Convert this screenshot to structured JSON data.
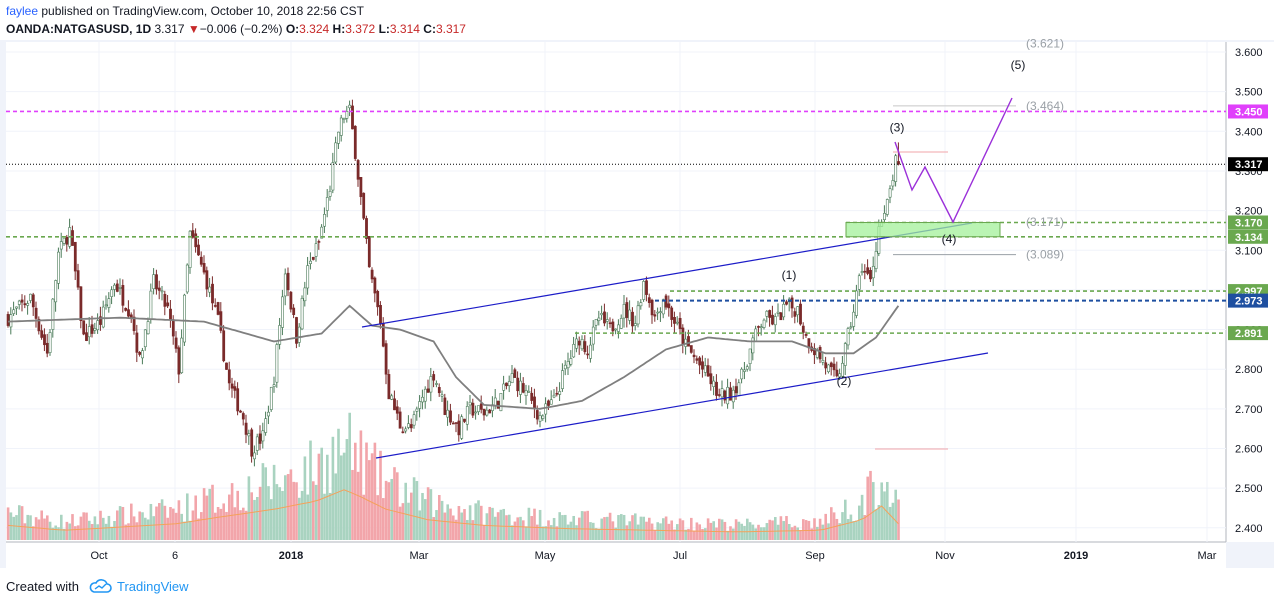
{
  "header": {
    "author": "faylee",
    "published": " published on TradingView.com, October 10, 2018 22:56 CST",
    "symbol": "OANDA:NATGASUSD, 1D",
    "last": "3.317",
    "change": "−0.006 (−0.2%)",
    "o_label": "O:",
    "o_value": "3.324",
    "h_label": "H:",
    "h_value": "3.372",
    "l_label": "L:",
    "l_value": "3.314",
    "c_label": "C:",
    "c_value": "3.317"
  },
  "footer": {
    "created": "Created with",
    "brand": "TradingView"
  },
  "colors": {
    "up": "#4a7a58",
    "down": "#7a2a2a",
    "vol_up": "#a9d3c0",
    "vol_down": "#f2a5aa",
    "ma": "#7f7f7f",
    "channel": "#1c1cc8",
    "wave": "#9b30d9",
    "magenta": "#e040fb",
    "green_dash": "#6aa84f",
    "blue_dash": "#1e4fa0"
  },
  "chart_data": {
    "type": "candlestick",
    "instrument": "OANDA:NATGASUSD, 1D",
    "x_ticks": [
      "Oct",
      "6",
      "2018",
      "Mar",
      "May",
      "Jul",
      "Sep",
      "Nov",
      "2019",
      "Mar"
    ],
    "y_ticks": [
      "3.600",
      "3.500",
      "3.400",
      "3.300",
      "3.200",
      "3.100",
      "3.000",
      "2.900",
      "2.800",
      "2.700",
      "2.600",
      "2.500",
      "2.400"
    ],
    "ylim": [
      2.375,
      3.615
    ],
    "anchors": [
      [
        0,
        2.93
      ],
      [
        8,
        2.98
      ],
      [
        14,
        2.84
      ],
      [
        18,
        3.09
      ],
      [
        22,
        3.15
      ],
      [
        27,
        2.88
      ],
      [
        33,
        2.92
      ],
      [
        38,
        3.02
      ],
      [
        44,
        2.94
      ],
      [
        47,
        2.82
      ],
      [
        52,
        3.02
      ],
      [
        57,
        2.95
      ],
      [
        61,
        2.8
      ],
      [
        65,
        3.14
      ],
      [
        71,
        3.02
      ],
      [
        75,
        2.92
      ],
      [
        79,
        2.76
      ],
      [
        84,
        2.68
      ],
      [
        87,
        2.6
      ],
      [
        91,
        2.63
      ],
      [
        95,
        2.78
      ],
      [
        99,
        3.05
      ],
      [
        103,
        2.88
      ],
      [
        107,
        3.05
      ],
      [
        111,
        3.12
      ],
      [
        115,
        3.26
      ],
      [
        118,
        3.4
      ],
      [
        120,
        3.44
      ],
      [
        122,
        3.45
      ],
      [
        124,
        3.35
      ],
      [
        126,
        3.23
      ],
      [
        129,
        3.05
      ],
      [
        133,
        2.92
      ],
      [
        136,
        2.74
      ],
      [
        140,
        2.66
      ],
      [
        144,
        2.65
      ],
      [
        148,
        2.73
      ],
      [
        152,
        2.79
      ],
      [
        156,
        2.7
      ],
      [
        161,
        2.65
      ],
      [
        165,
        2.7
      ],
      [
        170,
        2.69
      ],
      [
        175,
        2.72
      ],
      [
        180,
        2.78
      ],
      [
        185,
        2.74
      ],
      [
        190,
        2.68
      ],
      [
        195,
        2.72
      ],
      [
        199,
        2.8
      ],
      [
        204,
        2.88
      ],
      [
        207,
        2.85
      ],
      [
        211,
        2.93
      ],
      [
        215,
        2.9
      ],
      [
        220,
        2.95
      ],
      [
        224,
        2.92
      ],
      [
        227,
        3.02
      ],
      [
        231,
        2.93
      ],
      [
        234,
        2.98
      ],
      [
        238,
        2.92
      ],
      [
        242,
        2.86
      ],
      [
        246,
        2.82
      ],
      [
        250,
        2.78
      ],
      [
        254,
        2.73
      ],
      [
        258,
        2.74
      ],
      [
        262,
        2.78
      ],
      [
        266,
        2.87
      ],
      [
        270,
        2.93
      ],
      [
        274,
        2.92
      ],
      [
        278,
        2.96
      ],
      [
        282,
        2.95
      ],
      [
        285,
        2.88
      ],
      [
        289,
        2.84
      ],
      [
        293,
        2.8
      ],
      [
        296,
        2.77
      ],
      [
        299,
        2.85
      ],
      [
        302,
        2.95
      ],
      [
        305,
        3.06
      ],
      [
        308,
        3.02
      ],
      [
        311,
        3.16
      ],
      [
        313,
        3.18
      ],
      [
        315,
        3.25
      ],
      [
        317,
        3.32
      ],
      [
        318,
        3.317
      ]
    ],
    "volume_anchors": [
      [
        0,
        0.18
      ],
      [
        20,
        0.12
      ],
      [
        40,
        0.16
      ],
      [
        60,
        0.2
      ],
      [
        75,
        0.28
      ],
      [
        95,
        0.38
      ],
      [
        110,
        0.48
      ],
      [
        120,
        0.62
      ],
      [
        125,
        0.55
      ],
      [
        135,
        0.38
      ],
      [
        150,
        0.25
      ],
      [
        170,
        0.18
      ],
      [
        200,
        0.14
      ],
      [
        230,
        0.12
      ],
      [
        260,
        0.1
      ],
      [
        290,
        0.12
      ],
      [
        305,
        0.25
      ],
      [
        312,
        0.42
      ],
      [
        318,
        0.2
      ]
    ],
    "moving_average": [
      [
        0,
        2.92
      ],
      [
        40,
        2.93
      ],
      [
        70,
        2.92
      ],
      [
        95,
        2.87
      ],
      [
        112,
        2.89
      ],
      [
        122,
        2.96
      ],
      [
        130,
        2.91
      ],
      [
        140,
        2.9
      ],
      [
        152,
        2.87
      ],
      [
        160,
        2.78
      ],
      [
        170,
        2.71
      ],
      [
        190,
        2.7
      ],
      [
        205,
        2.72
      ],
      [
        220,
        2.78
      ],
      [
        235,
        2.85
      ],
      [
        250,
        2.88
      ],
      [
        265,
        2.87
      ],
      [
        280,
        2.87
      ],
      [
        292,
        2.84
      ],
      [
        302,
        2.84
      ],
      [
        310,
        2.88
      ],
      [
        318,
        2.96
      ]
    ],
    "horizontal_levels": [
      {
        "price": 3.45,
        "label": "3.450",
        "style": "magenta-dash"
      },
      {
        "price": 3.317,
        "label": "3.317",
        "style": "black-dot"
      },
      {
        "price": 3.17,
        "label": "3.170",
        "style": "green-dash"
      },
      {
        "price": 3.134,
        "label": "3.134",
        "style": "green-dash"
      },
      {
        "price": 2.997,
        "label": "2.997",
        "style": "green-dash"
      },
      {
        "price": 2.973,
        "label": "2.973",
        "style": "blue-dash"
      },
      {
        "price": 2.891,
        "label": "2.891",
        "style": "green-dash"
      }
    ],
    "channel_upper": [
      [
        362,
        327
      ],
      [
        972,
        223
      ]
    ],
    "channel_lower": [
      [
        376,
        458
      ],
      [
        988,
        353
      ]
    ],
    "support_box": {
      "from": 846,
      "to": 1000,
      "y0": 3.17,
      "y1": 3.134
    },
    "wave_path": [
      [
        895,
        142
      ],
      [
        912,
        190
      ],
      [
        925,
        167
      ],
      [
        953,
        222
      ],
      [
        1012,
        98
      ]
    ],
    "wave_labels": [
      {
        "label": "(1)",
        "x": 789,
        "price": 3.028
      },
      {
        "label": "(2)",
        "x": 844,
        "price": 2.76
      },
      {
        "label": "(3)",
        "x": 897,
        "price": 3.4
      },
      {
        "label": "(4)",
        "x": 949,
        "price": 3.118
      },
      {
        "label": "(5)",
        "x": 1018,
        "price": 3.557
      }
    ],
    "projection_labels": [
      {
        "label": "(3.621)",
        "x": 1045,
        "price": 3.621
      },
      {
        "label": "(3.464)",
        "x": 1045,
        "price": 3.464
      },
      {
        "label": "(3.171)",
        "x": 1045,
        "price": 3.171
      },
      {
        "label": "(3.089)",
        "x": 1045,
        "price": 3.089
      }
    ]
  }
}
